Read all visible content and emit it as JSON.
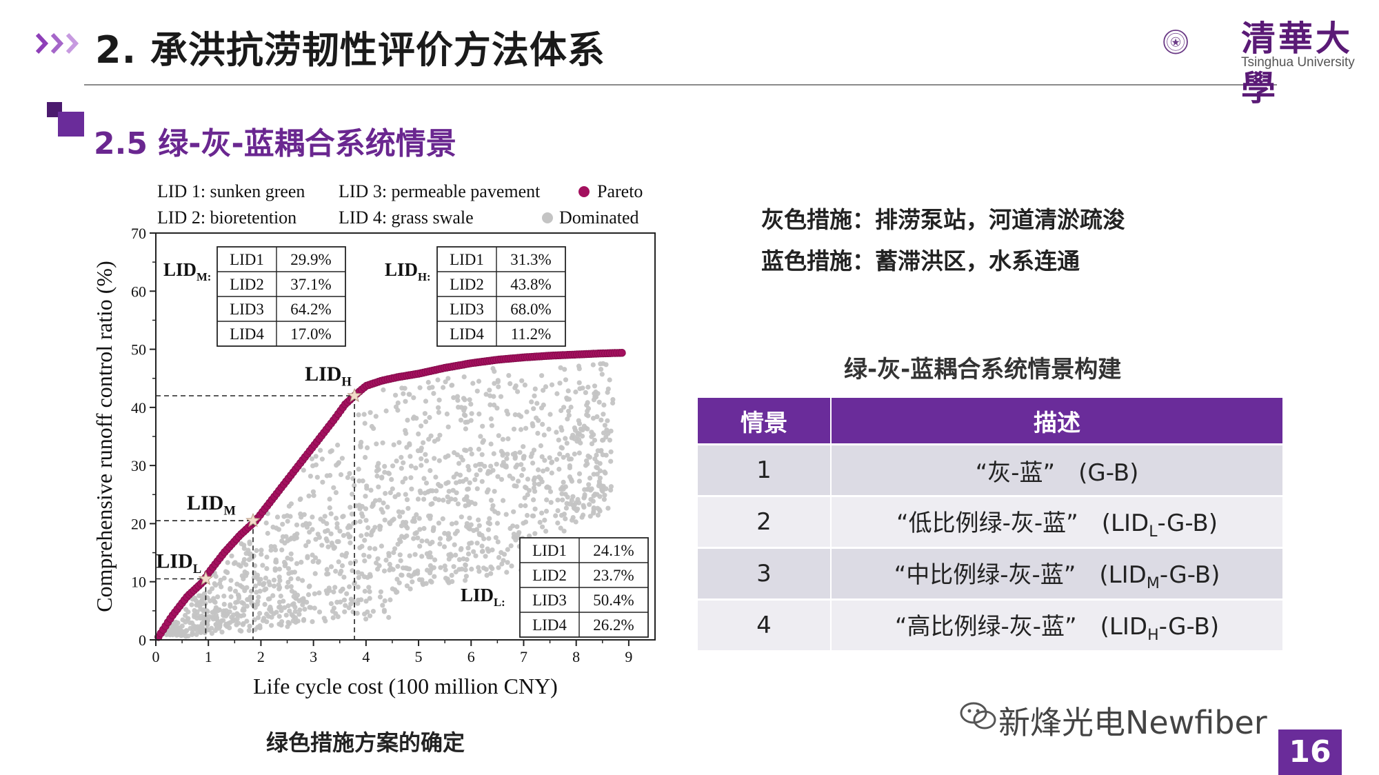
{
  "header": {
    "title": "2. 承洪抗涝韧性评价方法体系",
    "logo_text": "清華大學",
    "logo_sub": "Tsinghua University"
  },
  "section": {
    "title": "2.5 绿-灰-蓝耦合系统情景"
  },
  "colors": {
    "accent": "#6a2c9a",
    "pareto": "#a3105e",
    "dominated": "#c4c4c4"
  },
  "chart_data": {
    "type": "scatter",
    "xlabel": "Life cycle cost (100 million CNY)",
    "ylabel": "Comprehensive runoff control ratio (%)",
    "xlim": [
      0,
      9.5
    ],
    "ylim": [
      0,
      70
    ],
    "xticks": [
      "0",
      "1",
      "2",
      "3",
      "4",
      "5",
      "6",
      "7",
      "8",
      "9"
    ],
    "yticks": [
      "0",
      "10",
      "20",
      "30",
      "40",
      "50",
      "60",
      "70"
    ],
    "grid": false,
    "legend_lines": [
      "LID 1: sunken green",
      "LID 2: bioretention",
      "LID 3: permeable pavement",
      "LID 4: grass swale"
    ],
    "series": [
      {
        "name": "Pareto",
        "x": [
          0.05,
          0.3,
          0.6,
          0.9,
          1.0,
          1.3,
          1.6,
          1.9,
          2.2,
          2.5,
          2.8,
          3.1,
          3.4,
          3.6,
          3.78,
          4.0,
          4.3,
          4.6,
          5.0,
          5.5,
          6.0,
          6.5,
          7.0,
          7.5,
          8.0,
          8.5,
          8.9
        ],
        "y": [
          0.5,
          4.0,
          7.5,
          10.0,
          11.5,
          15.0,
          18.0,
          20.5,
          24.0,
          27.5,
          31.0,
          34.5,
          38.0,
          40.5,
          42.0,
          43.7,
          44.6,
          45.2,
          45.8,
          46.8,
          47.6,
          48.2,
          48.6,
          48.9,
          49.1,
          49.3,
          49.4
        ]
      },
      {
        "name": "Dominated",
        "note": "dense cloud of dominated solutions below the Pareto front, roughly x 0.2–8.7, y 1–48"
      }
    ],
    "annotations": [
      {
        "label": "LID",
        "sub": "L",
        "x": 0.95,
        "y": 10.5
      },
      {
        "label": "LID",
        "sub": "M",
        "x": 1.85,
        "y": 20.5
      },
      {
        "label": "LID",
        "sub": "H",
        "x": 3.78,
        "y": 42.0
      }
    ],
    "lid_tables": [
      {
        "label": "LID",
        "sub": "M",
        "rows": [
          [
            "LID1",
            "29.9%"
          ],
          [
            "LID2",
            "37.1%"
          ],
          [
            "LID3",
            "64.2%"
          ],
          [
            "LID4",
            "17.0%"
          ]
        ]
      },
      {
        "label": "LID",
        "sub": "H",
        "rows": [
          [
            "LID1",
            "31.3%"
          ],
          [
            "LID2",
            "43.8%"
          ],
          [
            "LID3",
            "68.0%"
          ],
          [
            "LID4",
            "11.2%"
          ]
        ]
      },
      {
        "label": "LID",
        "sub": "L",
        "rows": [
          [
            "LID1",
            "24.1%"
          ],
          [
            "LID2",
            "23.7%"
          ],
          [
            "LID3",
            "50.4%"
          ],
          [
            "LID4",
            "26.2%"
          ]
        ]
      }
    ]
  },
  "chart_caption": "绿色措施方案的确定",
  "measures": {
    "gray": "灰色措施：排涝泵站，河道清淤疏浚",
    "blue": "蓝色措施：蓄滞洪区，水系连通"
  },
  "scenario_table": {
    "title": "绿-灰-蓝耦合系统情景构建",
    "headers": [
      "情景",
      "描述"
    ],
    "rows": [
      {
        "id": "1",
        "desc": "“灰-蓝”",
        "code_pre": "(G-B)",
        "code_sub": "",
        "code_post": ""
      },
      {
        "id": "2",
        "desc": "“低比例绿-灰-蓝”",
        "code_pre": "(LID",
        "code_sub": "L",
        "code_post": "-G-B)"
      },
      {
        "id": "3",
        "desc": "“中比例绿-灰-蓝”",
        "code_pre": "(LID",
        "code_sub": "M",
        "code_post": "-G-B)"
      },
      {
        "id": "4",
        "desc": "“高比例绿-灰-蓝”",
        "code_pre": "(LID",
        "code_sub": "H",
        "code_post": "-G-B)"
      }
    ]
  },
  "watermark": "新烽光电Newfiber",
  "page_number": "16"
}
